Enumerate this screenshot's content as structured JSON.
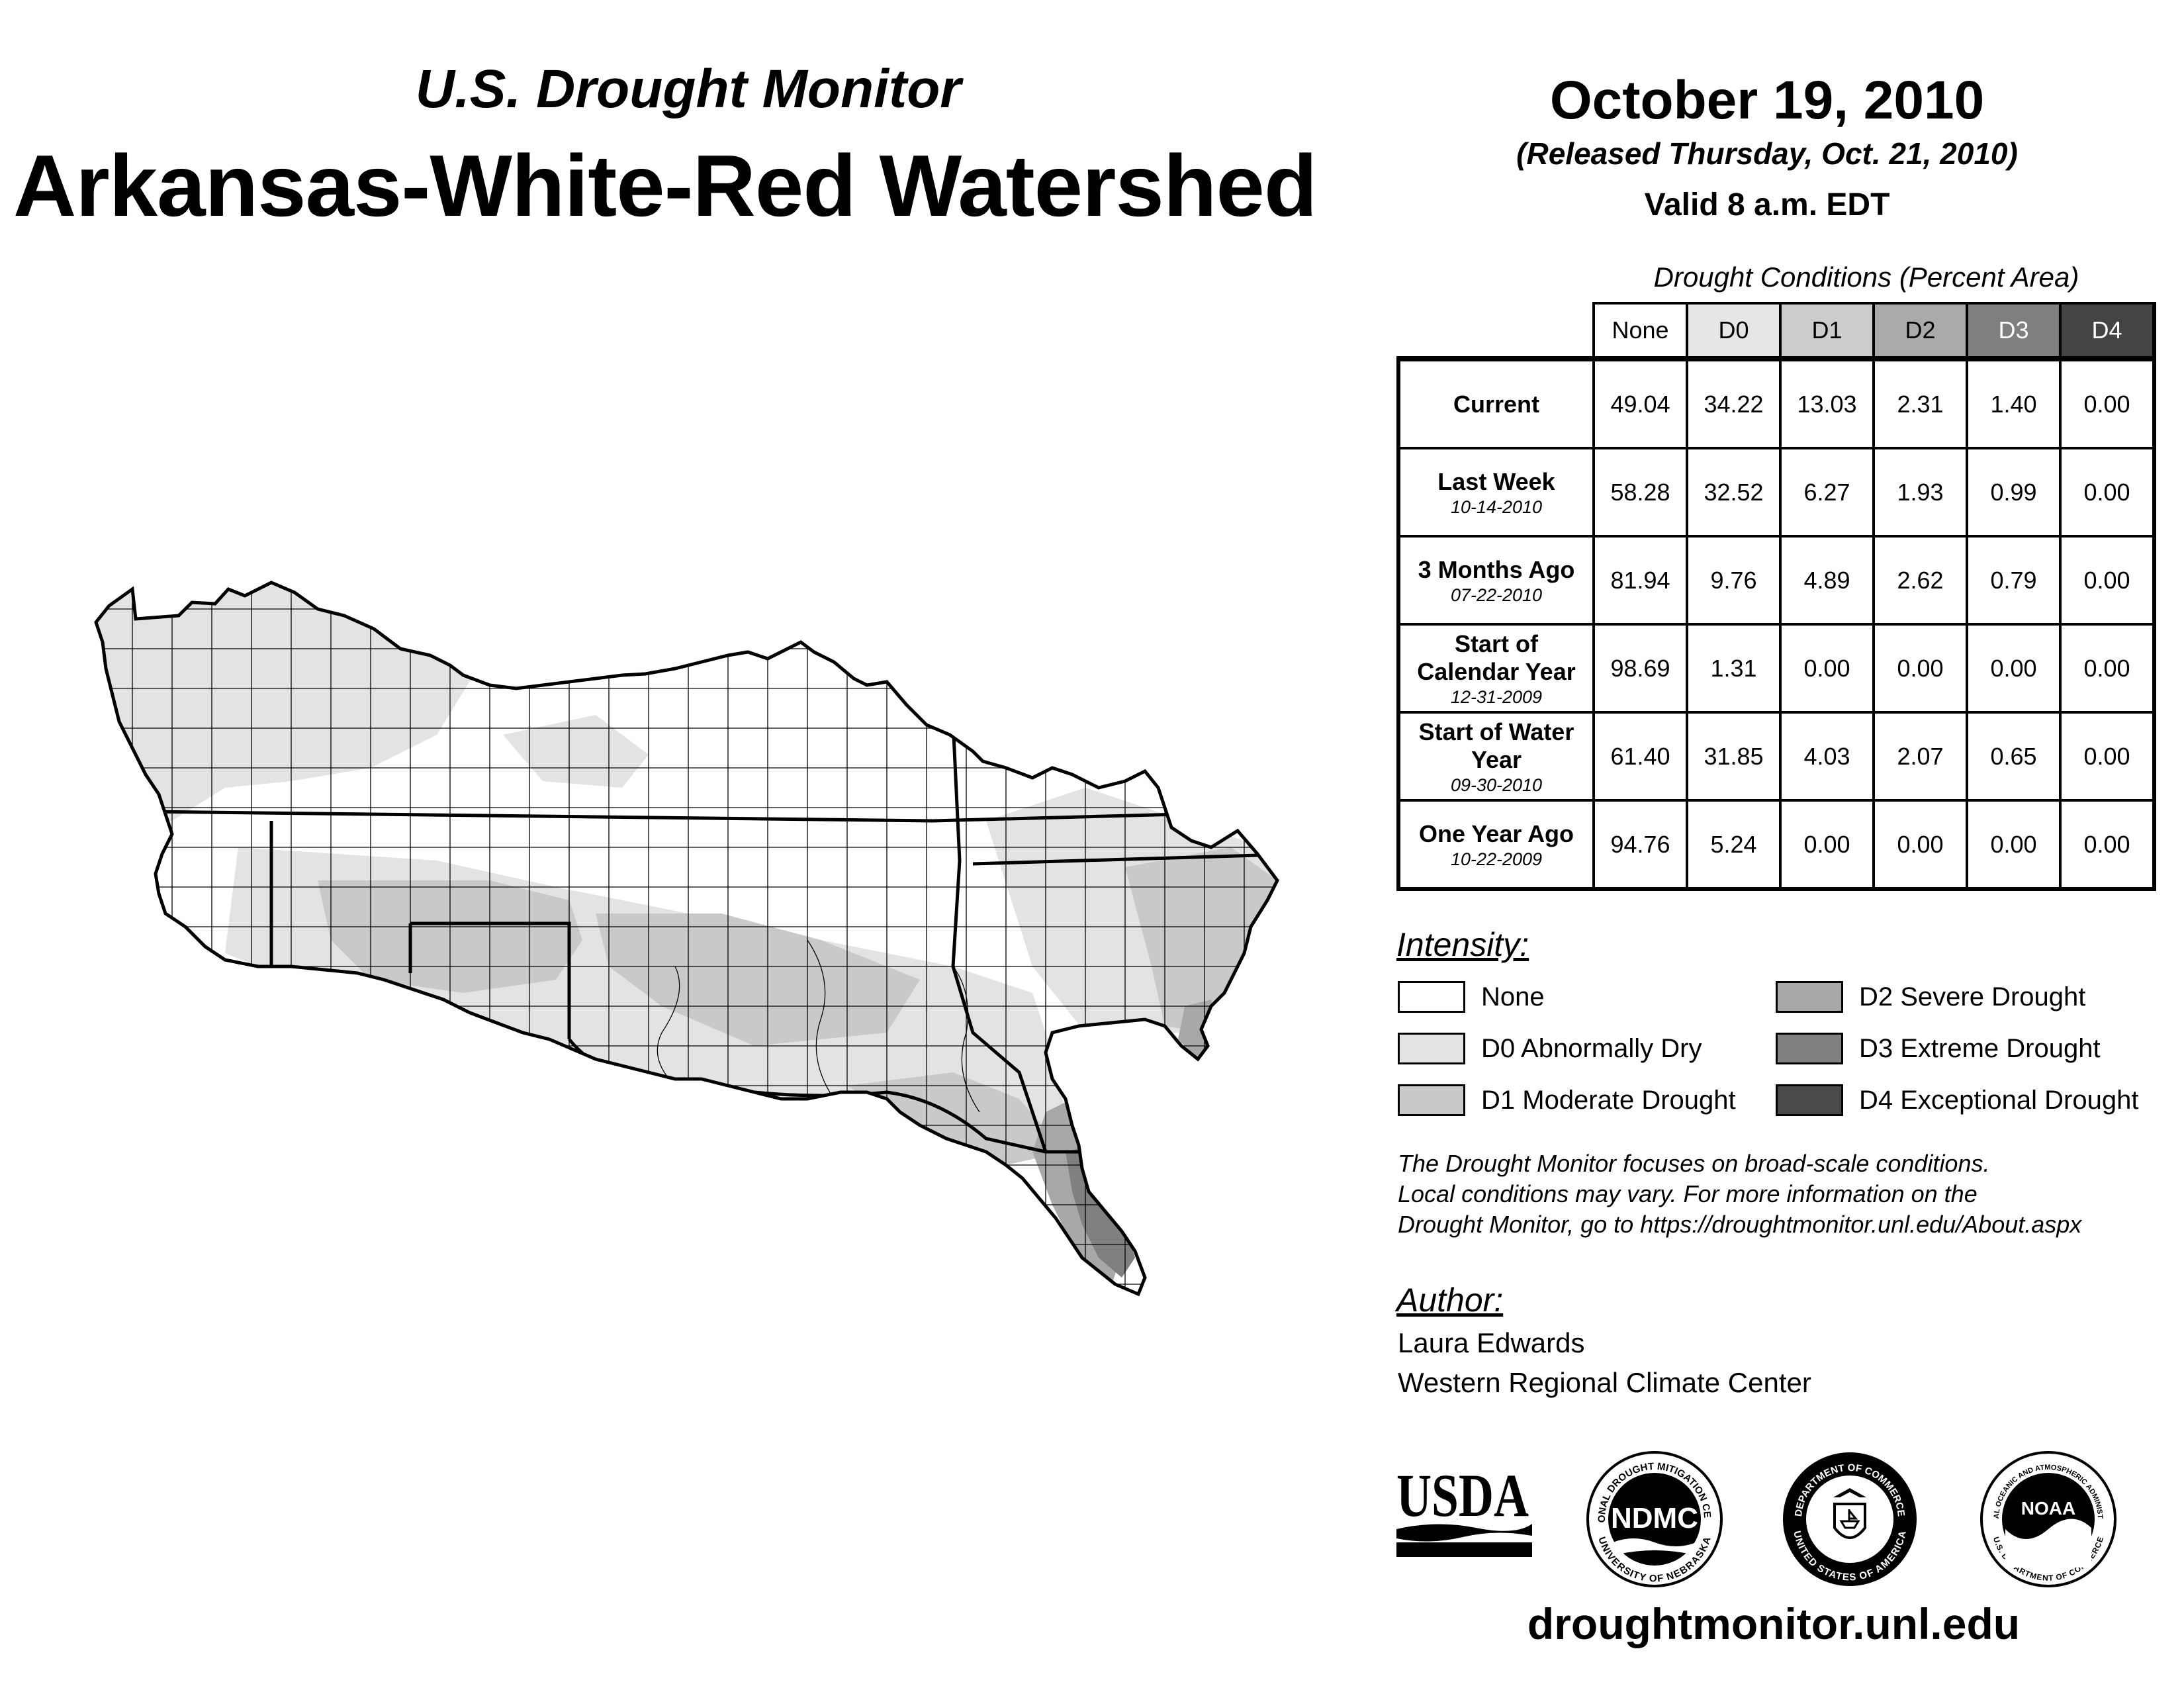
{
  "header": {
    "subtitle": "U.S. Drought Monitor",
    "title": "Arkansas-White-Red Watershed",
    "date": "October 19, 2010",
    "released": "(Released Thursday, Oct. 21, 2010)",
    "valid": "Valid 8 a.m. EDT"
  },
  "table": {
    "title": "Drought Conditions (Percent Area)",
    "columns": [
      "None",
      "D0",
      "D1",
      "D2",
      "D3",
      "D4"
    ],
    "column_colors": [
      "#ffffff",
      "#e6e6e6",
      "#cccccc",
      "#aaaaaa",
      "#7f7f7f",
      "#444444"
    ],
    "rows": [
      {
        "label": "Current",
        "date": "",
        "values": [
          "49.04",
          "34.22",
          "13.03",
          "2.31",
          "1.40",
          "0.00"
        ]
      },
      {
        "label": "Last Week",
        "date": "10-14-2010",
        "values": [
          "58.28",
          "32.52",
          "6.27",
          "1.93",
          "0.99",
          "0.00"
        ]
      },
      {
        "label": "3 Months Ago",
        "date": "07-22-2010",
        "values": [
          "81.94",
          "9.76",
          "4.89",
          "2.62",
          "0.79",
          "0.00"
        ]
      },
      {
        "label": "Start of Calendar Year",
        "date": "12-31-2009",
        "values": [
          "98.69",
          "1.31",
          "0.00",
          "0.00",
          "0.00",
          "0.00"
        ]
      },
      {
        "label": "Start of Water Year",
        "date": "09-30-2010",
        "values": [
          "61.40",
          "31.85",
          "4.03",
          "2.07",
          "0.65",
          "0.00"
        ]
      },
      {
        "label": "One Year Ago",
        "date": "10-22-2009",
        "values": [
          "94.76",
          "5.24",
          "0.00",
          "0.00",
          "0.00",
          "0.00"
        ]
      }
    ]
  },
  "legend": {
    "heading": "Intensity:",
    "items": [
      {
        "label": "None",
        "color": "#ffffff"
      },
      {
        "label": "D0 Abnormally Dry",
        "color": "#e3e3e3"
      },
      {
        "label": "D1 Moderate Drought",
        "color": "#c9c9c9"
      },
      {
        "label": "D2 Severe Drought",
        "color": "#a8a8a8"
      },
      {
        "label": "D3 Extreme Drought",
        "color": "#808080"
      },
      {
        "label": "D4 Exceptional Drought",
        "color": "#4a4a4a"
      }
    ]
  },
  "note": {
    "lines": [
      "The Drought Monitor focuses on broad-scale conditions.",
      "Local conditions may vary. For more information on the",
      "Drought Monitor, go to https://droughtmonitor.unl.edu/About.aspx"
    ]
  },
  "author": {
    "heading": "Author:",
    "name": "Laura Edwards",
    "org": "Western Regional Climate Center"
  },
  "logos": {
    "usda": "USDA",
    "ndmc": "NDMC",
    "ndmc_ring_top": "NATIONAL DROUGHT MITIGATION CENTER",
    "ndmc_ring_bottom": "UNIVERSITY OF NEBRASKA",
    "doc_ring_top": "DEPARTMENT OF COMMERCE",
    "doc_ring_bottom": "UNITED STATES OF AMERICA",
    "noaa": "NOAA",
    "noaa_ring_top": "NATIONAL OCEANIC AND ATMOSPHERIC ADMINISTRATION",
    "noaa_ring_bottom": "U.S. DEPARTMENT OF COMMERCE"
  },
  "footer": {
    "site": "droughtmonitor.unl.edu"
  }
}
